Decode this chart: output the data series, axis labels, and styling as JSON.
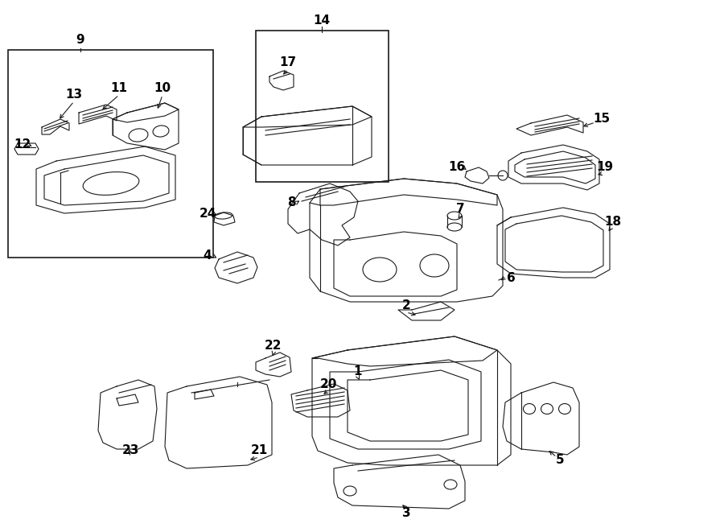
{
  "bg_color": "#ffffff",
  "line_color": "#1a1a1a",
  "text_color": "#000000",
  "fig_width": 9.0,
  "fig_height": 6.61,
  "dpi": 100,
  "lw": 0.8,
  "fs_label": 11
}
